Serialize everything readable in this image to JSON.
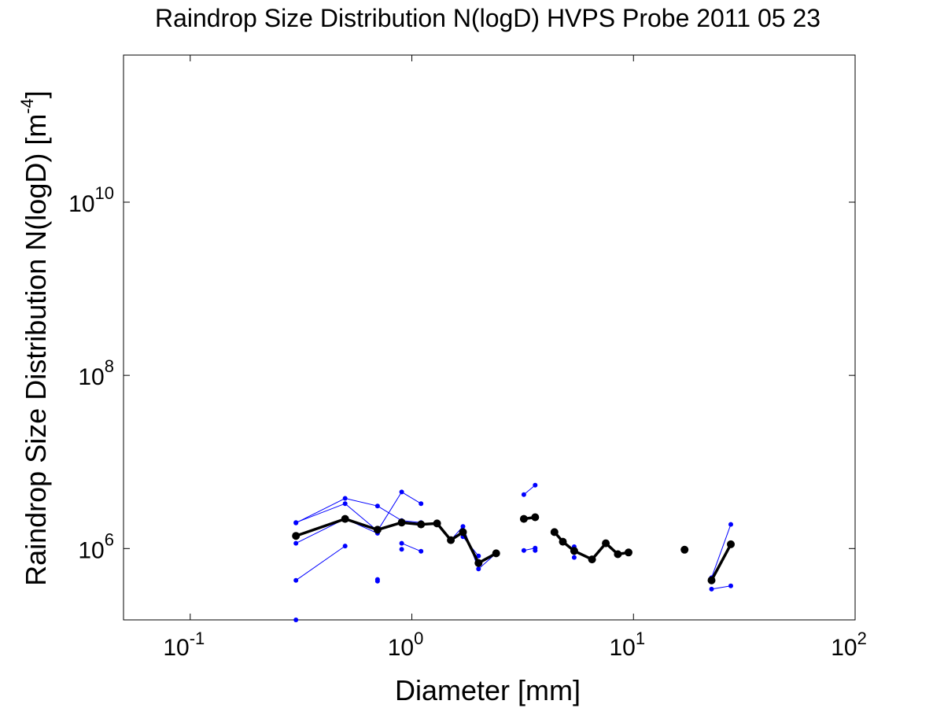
{
  "chart_data": {
    "type": "line",
    "title": "Raindrop Size Distribution N(logD) HVPS Probe 2011 05 23",
    "xlabel": "Diameter [mm]",
    "ylabel_main": "Raindrop Size Distribution N(logD) [m",
    "ylabel_sup": "-4",
    "ylabel_close": "]",
    "x_scale": "log",
    "y_scale": "log",
    "xlim": [
      0.05,
      100
    ],
    "ylim": [
      150000,
      500000000000
    ],
    "grid": false,
    "x_ticks": [
      {
        "value": 0.1,
        "base": "10",
        "exp": "-1"
      },
      {
        "value": 1,
        "base": "10",
        "exp": "0"
      },
      {
        "value": 10,
        "base": "10",
        "exp": "1"
      },
      {
        "value": 100,
        "base": "10",
        "exp": "2"
      }
    ],
    "y_ticks": [
      {
        "value": 1000000,
        "base": "10",
        "exp": "6"
      },
      {
        "value": 100000000,
        "base": "10",
        "exp": "8"
      },
      {
        "value": 10000000000,
        "base": "10",
        "exp": "10"
      }
    ],
    "colors": {
      "mean": "#000000",
      "samples": "#0000ff",
      "axes": "#000000"
    },
    "series": [
      {
        "style": "mean",
        "segments": [
          [
            [
              0.3,
              1400000
            ],
            [
              0.5,
              2200000
            ],
            [
              0.7,
              1650000
            ],
            [
              0.9,
              2000000
            ],
            [
              1.1,
              1900000
            ],
            [
              1.3,
              1950000
            ],
            [
              1.5,
              1250000
            ],
            [
              1.7,
              1550000
            ],
            [
              2.0,
              680000
            ],
            [
              2.4,
              880000
            ]
          ],
          [
            [
              3.2,
              2200000
            ],
            [
              3.6,
              2300000
            ]
          ],
          [
            [
              4.4,
              1550000
            ],
            [
              4.8,
              1200000
            ],
            [
              5.4,
              940000
            ],
            [
              6.5,
              750000
            ],
            [
              7.5,
              1150000
            ],
            [
              8.5,
              860000
            ],
            [
              9.5,
              900000
            ]
          ],
          [
            [
              17.0,
              970000
            ]
          ],
          [
            [
              22.5,
              430000
            ],
            [
              27.5,
              1120000
            ]
          ]
        ]
      },
      {
        "style": "sample",
        "segments": [
          [
            [
              0.3,
              2000000
            ],
            [
              0.5,
              3300000
            ],
            [
              0.7,
              1600000
            ],
            [
              0.9,
              4500000
            ],
            [
              1.1,
              3300000
            ]
          ],
          [
            [
              0.3,
              1980000
            ],
            [
              0.5,
              3800000
            ],
            [
              0.7,
              3100000
            ],
            [
              0.9,
              2100000
            ],
            [
              1.1,
              2000000
            ]
          ],
          [
            [
              0.3,
              1150000
            ],
            [
              0.5,
              2200000
            ],
            [
              0.7,
              1500000
            ]
          ],
          [
            [
              0.3,
              430000
            ],
            [
              0.5,
              1070000
            ]
          ],
          [
            [
              0.9,
              1150000
            ],
            [
              1.1,
              930000
            ]
          ],
          [
            [
              1.3,
              1900000
            ],
            [
              1.5,
              1250000
            ],
            [
              1.7,
              1800000
            ],
            [
              2.0,
              580000
            ],
            [
              2.4,
              880000
            ]
          ],
          [
            [
              1.7,
              1370000
            ],
            [
              2.0,
              820000
            ]
          ],
          [
            [
              3.2,
              4200000
            ],
            [
              3.6,
              5400000
            ]
          ],
          [
            [
              3.2,
              950000
            ],
            [
              3.6,
              1010000
            ]
          ],
          [
            [
              5.4,
              1050000
            ],
            [
              5.4,
              790000
            ]
          ],
          [
            [
              22.5,
              460000
            ],
            [
              27.5,
              1900000
            ]
          ],
          [
            [
              22.5,
              340000
            ],
            [
              27.5,
              370000
            ]
          ]
        ],
        "points": [
          [
            0.3,
            150000
          ],
          [
            0.7,
            440000
          ],
          [
            0.7,
            420000
          ],
          [
            0.9,
            980000
          ],
          [
            3.6,
            950000
          ]
        ]
      }
    ]
  }
}
